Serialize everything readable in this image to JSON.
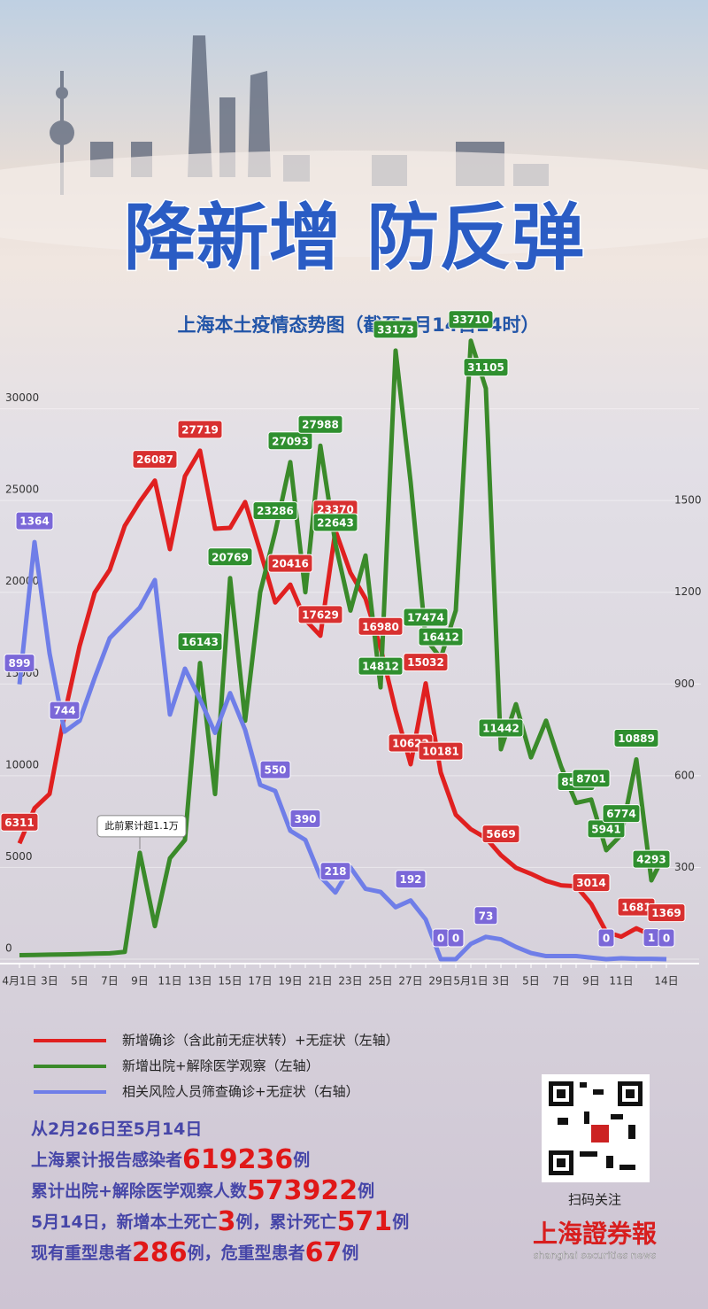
{
  "chart_data": {
    "type": "line",
    "title": "降新增 防反弹",
    "subtitle": "上海本土疫情态势图（截至5月14日24时）",
    "categories": [
      "4月1日",
      null,
      "3日",
      null,
      "5日",
      null,
      "7日",
      null,
      "9日",
      null,
      "11日",
      null,
      "13日",
      null,
      "15日",
      null,
      "17日",
      null,
      "19日",
      null,
      "21日",
      null,
      "23日",
      null,
      "25日",
      null,
      "27日",
      null,
      "29日",
      null,
      "5月1日",
      null,
      "3日",
      null,
      "5日",
      null,
      "7日",
      null,
      "9日",
      null,
      "11日",
      null,
      null,
      "14日"
    ],
    "series": [
      {
        "name": "新增确诊（含此前无症状转）+无症状（左轴）",
        "color": "#e02020",
        "label_color": "#d83030",
        "values": [
          6311,
          8226,
          9006,
          13354,
          17077,
          19982,
          21222,
          23624,
          24943,
          26087,
          22348,
          26330,
          27719,
          23460,
          23513,
          24914,
          22248,
          19442,
          20416,
          18499,
          17629,
          23370,
          21058,
          19657,
          16980,
          13562,
          10622,
          15032,
          10181,
          7872,
          7084,
          6606,
          5669,
          4982,
          4651,
          4269,
          4024,
          3975,
          3014,
          1487,
          1226,
          1681,
          1305,
          1369
        ],
        "label_indices": [
          0,
          9,
          12,
          18,
          20,
          21,
          24,
          26,
          27,
          28,
          32,
          38,
          41,
          43
        ]
      },
      {
        "name": "新增出院+解除医学观察（左轴）",
        "color": "#3a8a2a",
        "label_color": "#2f8f2f",
        "values": [
          220,
          230,
          250,
          260,
          280,
          300,
          320,
          400,
          5800,
          1800,
          5500,
          6500,
          16143,
          9000,
          20769,
          13000,
          20000,
          23286,
          27093,
          20000,
          27988,
          22643,
          19000,
          22000,
          14812,
          33173,
          26000,
          17474,
          16412,
          19000,
          33710,
          31105,
          11442,
          13900,
          11000,
          13000,
          10500,
          8519,
          8701,
          5941,
          6774,
          10889,
          4293,
          5900
        ],
        "label_indices": [
          12,
          14,
          17,
          18,
          20,
          21,
          24,
          25,
          27,
          28,
          30,
          31,
          32,
          37,
          38,
          39,
          40,
          41,
          42
        ]
      },
      {
        "name": "相关风险人员筛查确诊+无症状（右轴）",
        "color": "#6f7ee8",
        "label_color": "#7b68d8",
        "axis": "y2",
        "values": [
          899,
          1364,
          1000,
          744,
          780,
          920,
          1050,
          1100,
          1150,
          1240,
          800,
          950,
          850,
          740,
          870,
          750,
          570,
          550,
          420,
          390,
          270,
          218,
          300,
          230,
          220,
          170,
          192,
          130,
          0,
          0,
          50,
          73,
          65,
          40,
          20,
          10,
          10,
          10,
          5,
          0,
          3,
          1,
          1,
          0
        ],
        "label_indices": [
          0,
          1,
          3,
          17,
          19,
          21,
          26,
          28,
          29,
          31,
          39,
          42,
          43
        ]
      }
    ],
    "annotation": {
      "text": "此前累计超1.1万",
      "series": 1,
      "index": 8
    },
    "ylim": [
      0,
      35000
    ],
    "yticks": [
      0,
      5000,
      10000,
      15000,
      20000,
      25000,
      30000
    ],
    "y2lim": [
      0,
      2100
    ],
    "y2ticks": [
      300,
      600,
      900,
      1200,
      1500
    ],
    "grid": true
  },
  "stats": [
    [
      "从2月26日至5月14日"
    ],
    [
      "上海累计报告感染者",
      619236,
      "例"
    ],
    [
      "累计出院+解除医学观察人数",
      573922,
      "例"
    ],
    [
      "5月14日，新增本土死亡",
      3,
      "例，累计死亡",
      571,
      "例"
    ],
    [
      "现有重型患者",
      286,
      "例，危重型患者",
      67,
      "例"
    ]
  ],
  "qr_caption": "扫码关注",
  "logo": {
    "name": "上海證券報",
    "english": "shanghai securities news"
  }
}
